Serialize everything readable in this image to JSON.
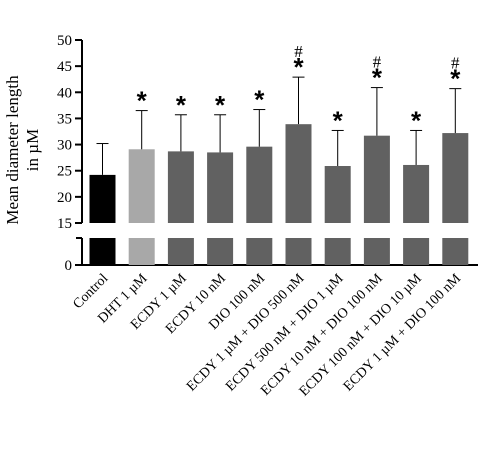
{
  "chart_data": {
    "type": "bar",
    "ylabel_line1": "Mean diameter length",
    "ylabel_line2": "in µM",
    "categories": [
      "Control",
      "DHT 1 µM",
      "ECDY 1 µM",
      "ECDY 10 nM",
      "DIO 100 nM",
      "ECDY 1 µM + DIO 500 nM",
      "ECDY 500 nM + DIO 1 µM",
      "ECDY 10 nM + DIO 100 nM",
      "ECDY 100 nM + DIO 10 µM",
      "ECDY 1 µM + DIO 100 nM"
    ],
    "values": [
      24.2,
      29.1,
      28.7,
      28.5,
      29.6,
      33.9,
      25.9,
      31.7,
      26.1,
      32.2
    ],
    "errors": [
      6.0,
      7.4,
      7.0,
      7.2,
      7.1,
      9.0,
      6.8,
      9.2,
      6.6,
      8.5
    ],
    "colors": [
      "#000000",
      "#a8a8a8",
      "#616161",
      "#616161",
      "#616161",
      "#616161",
      "#616161",
      "#616161",
      "#616161",
      "#616161"
    ],
    "star_marker": "*",
    "hash_marker": "#",
    "stars": [
      false,
      true,
      true,
      true,
      true,
      true,
      true,
      true,
      true,
      true
    ],
    "hashes": [
      false,
      false,
      false,
      false,
      false,
      true,
      false,
      true,
      false,
      true
    ],
    "y_upper_range": [
      15,
      50
    ],
    "y_upper_ticks": [
      15,
      20,
      25,
      30,
      35,
      40,
      45,
      50
    ],
    "y_lower_tick": 0,
    "grid": false,
    "axis_break": true
  }
}
